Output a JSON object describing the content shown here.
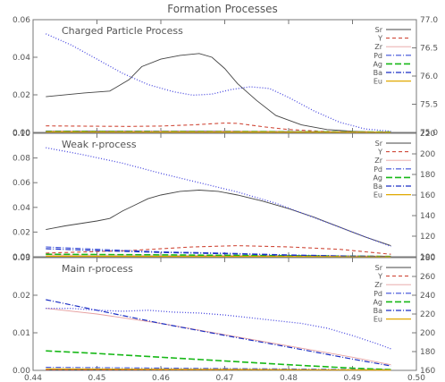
{
  "figure_title": "Formation Processes",
  "x_tick_labels": [
    "0.44",
    "0.45",
    "0.46",
    "0.47",
    "0.48",
    "0.49",
    "0.50"
  ],
  "legend_colors": {
    "Sr": "#444444",
    "Y": "#d04a3a",
    "Zr": "#e6a0a0",
    "Pd": "#3b4fd8",
    "Ag": "#18b818",
    "Ba": "#1a2ec4",
    "Eu": "#e0a800"
  },
  "chart_data": [
    {
      "type": "line",
      "title": "Charged Particle Process",
      "xlim": [
        0.44,
        0.5
      ],
      "ylim": [
        0,
        0.06
      ],
      "y2lim": [
        75.0,
        77.0
      ],
      "ytick_labels": [
        "0.00",
        "0.02",
        "0.04",
        "0.06"
      ],
      "y2tick_labels": [
        "75.0",
        "75.5",
        "76.0",
        "76.5",
        "77.0"
      ],
      "legend_position": "top-right",
      "series": [
        {
          "name": "Sr",
          "axis": "left",
          "x": [
            0.442,
            0.448,
            0.452,
            0.455,
            0.457,
            0.46,
            0.463,
            0.466,
            0.468,
            0.47,
            0.472,
            0.475,
            0.478,
            0.482,
            0.486,
            0.49,
            0.493,
            0.496
          ],
          "y": [
            0.019,
            0.021,
            0.022,
            0.028,
            0.035,
            0.039,
            0.041,
            0.042,
            0.04,
            0.034,
            0.026,
            0.017,
            0.009,
            0.004,
            0.0015,
            0.0006,
            0.0003,
            0.0002
          ]
        },
        {
          "name": "Y",
          "axis": "left",
          "x": [
            0.442,
            0.45,
            0.455,
            0.46,
            0.465,
            0.47,
            0.472,
            0.476,
            0.48,
            0.485,
            0.49,
            0.496
          ],
          "y": [
            0.0035,
            0.0033,
            0.0032,
            0.0034,
            0.004,
            0.005,
            0.0048,
            0.003,
            0.0015,
            0.0006,
            0.0003,
            0.0002
          ]
        },
        {
          "name": "Zr",
          "axis": "left",
          "x": [
            0.442,
            0.47,
            0.496
          ],
          "y": [
            0.0008,
            0.0008,
            0.0002
          ]
        },
        {
          "name": "Pd",
          "axis": "left",
          "x": [
            0.442,
            0.496
          ],
          "y": [
            0.0006,
            0.0002
          ]
        },
        {
          "name": "Ag",
          "axis": "left",
          "x": [
            0.442,
            0.496
          ],
          "y": [
            0.0005,
            0.0002
          ]
        },
        {
          "name": "Ba",
          "axis": "left",
          "x": [
            0.442,
            0.496
          ],
          "y": [
            0.0004,
            0.0001
          ]
        },
        {
          "name": "Eu",
          "axis": "left",
          "x": [
            0.442,
            0.496
          ],
          "y": [
            0.0003,
            0.0001
          ]
        },
        {
          "name": "",
          "axis": "right",
          "x": [
            0.442,
            0.446,
            0.45,
            0.454,
            0.458,
            0.462,
            0.465,
            0.468,
            0.471,
            0.474,
            0.477,
            0.48,
            0.484,
            0.488,
            0.492,
            0.496
          ],
          "y": [
            76.75,
            76.55,
            76.3,
            76.05,
            75.85,
            75.72,
            75.66,
            75.68,
            75.76,
            75.81,
            75.78,
            75.62,
            75.38,
            75.18,
            75.06,
            75.02
          ]
        }
      ]
    },
    {
      "type": "line",
      "title": "Weak r-process",
      "xlim": [
        0.44,
        0.5
      ],
      "ylim": [
        0,
        0.1
      ],
      "y2lim": [
        100,
        220
      ],
      "ytick_labels": [
        "0.00",
        "0.02",
        "0.04",
        "0.06",
        "0.08",
        "0.10"
      ],
      "y2tick_labels": [
        "100",
        "120",
        "140",
        "160",
        "180",
        "200",
        "220"
      ],
      "legend_position": "top-right",
      "series": [
        {
          "name": "Sr",
          "axis": "left",
          "x": [
            0.442,
            0.445,
            0.45,
            0.452,
            0.454,
            0.456,
            0.458,
            0.46,
            0.463,
            0.466,
            0.469,
            0.472,
            0.476,
            0.48,
            0.484,
            0.488,
            0.492,
            0.496
          ],
          "y": [
            0.022,
            0.025,
            0.029,
            0.031,
            0.037,
            0.042,
            0.047,
            0.05,
            0.053,
            0.054,
            0.053,
            0.05,
            0.045,
            0.039,
            0.032,
            0.024,
            0.016,
            0.009
          ]
        },
        {
          "name": "Y",
          "axis": "left",
          "x": [
            0.442,
            0.455,
            0.465,
            0.472,
            0.48,
            0.488,
            0.496
          ],
          "y": [
            0.003,
            0.005,
            0.008,
            0.009,
            0.008,
            0.006,
            0.002
          ]
        },
        {
          "name": "Zr",
          "axis": "left",
          "x": [
            0.442,
            0.46,
            0.48,
            0.496
          ],
          "y": [
            0.0015,
            0.0012,
            0.001,
            0.0005
          ]
        },
        {
          "name": "Pd",
          "axis": "left",
          "x": [
            0.442,
            0.45,
            0.46,
            0.47,
            0.48,
            0.49,
            0.496
          ],
          "y": [
            0.008,
            0.006,
            0.004,
            0.003,
            0.0015,
            0.0006,
            0.0002
          ]
        },
        {
          "name": "Ag",
          "axis": "left",
          "x": [
            0.442,
            0.46,
            0.48,
            0.496
          ],
          "y": [
            0.002,
            0.0015,
            0.0008,
            0.0002
          ]
        },
        {
          "name": "Ba",
          "axis": "left",
          "x": [
            0.442,
            0.45,
            0.46,
            0.47,
            0.48,
            0.49,
            0.496
          ],
          "y": [
            0.0065,
            0.005,
            0.0035,
            0.0025,
            0.0012,
            0.0005,
            0.0002
          ]
        },
        {
          "name": "Eu",
          "axis": "left",
          "x": [
            0.442,
            0.496
          ],
          "y": [
            0.0004,
            0.0001
          ]
        },
        {
          "name": "",
          "axis": "right",
          "x": [
            0.442,
            0.448,
            0.454,
            0.46,
            0.466,
            0.472,
            0.478,
            0.484,
            0.49,
            0.496
          ],
          "y": [
            206,
            199,
            191,
            181,
            172,
            163,
            152,
            138,
            124,
            110
          ]
        }
      ]
    },
    {
      "type": "line",
      "title": "Main r-process",
      "xlim": [
        0.44,
        0.5
      ],
      "ylim": [
        0,
        0.03
      ],
      "y2lim": [
        160,
        280
      ],
      "ytick_labels": [
        "0.00",
        "0.01",
        "0.02",
        "0.03"
      ],
      "y2tick_labels": [
        "160",
        "180",
        "200",
        "220",
        "240",
        "260",
        "280"
      ],
      "legend_position": "top-right",
      "series": [
        {
          "name": "Sr",
          "axis": "left",
          "x": [
            0.442,
            0.496
          ],
          "y": [
            0.0002,
            0.0001
          ]
        },
        {
          "name": "Y",
          "axis": "left",
          "x": [
            0.442,
            0.496
          ],
          "y": [
            0.0002,
            0.0001
          ]
        },
        {
          "name": "Zr",
          "axis": "left",
          "x": [
            0.442,
            0.45,
            0.46,
            0.47,
            0.48,
            0.49,
            0.496
          ],
          "y": [
            0.0165,
            0.015,
            0.0125,
            0.0095,
            0.0065,
            0.0035,
            0.0015
          ]
        },
        {
          "name": "Pd",
          "axis": "left",
          "x": [
            0.442,
            0.496
          ],
          "y": [
            0.0008,
            0.0002
          ]
        },
        {
          "name": "Ag",
          "axis": "left",
          "x": [
            0.442,
            0.45,
            0.46,
            0.47,
            0.48,
            0.49,
            0.496
          ],
          "y": [
            0.0052,
            0.0045,
            0.0035,
            0.0025,
            0.0015,
            0.0006,
            0.0002
          ]
        },
        {
          "name": "Ba",
          "axis": "left",
          "x": [
            0.442,
            0.45,
            0.46,
            0.47,
            0.48,
            0.49,
            0.496
          ],
          "y": [
            0.0188,
            0.016,
            0.0125,
            0.0093,
            0.0062,
            0.003,
            0.0012
          ]
        },
        {
          "name": "Eu",
          "axis": "left",
          "x": [
            0.442,
            0.496
          ],
          "y": [
            0.0004,
            0.0001
          ]
        },
        {
          "name": "",
          "axis": "right",
          "x": [
            0.442,
            0.446,
            0.45,
            0.454,
            0.458,
            0.462,
            0.466,
            0.47,
            0.474,
            0.478,
            0.482,
            0.486,
            0.49,
            0.494,
            0.496
          ],
          "y": [
            226,
            226,
            224,
            223,
            224,
            222,
            221,
            219,
            216,
            213,
            210,
            205,
            197,
            188,
            183
          ]
        }
      ]
    }
  ]
}
